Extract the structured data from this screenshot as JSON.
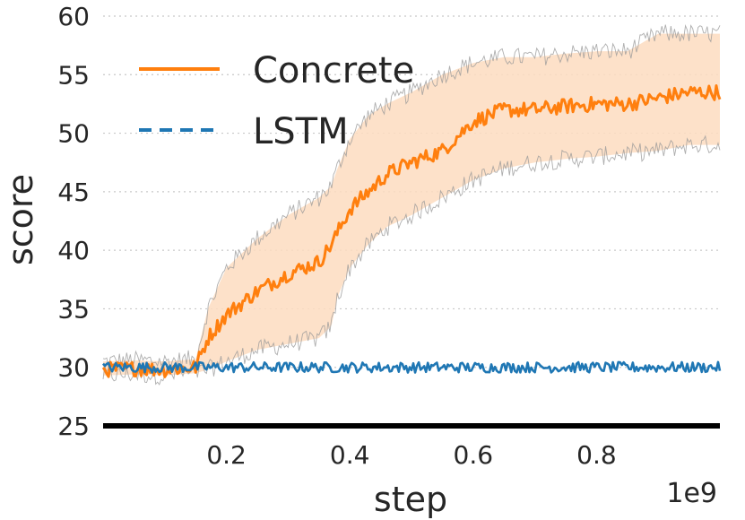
{
  "chart_data": {
    "type": "line",
    "title": "",
    "xlabel": "step",
    "ylabel": "score",
    "x_offset_label": "1e9",
    "xlim": [
      0.0,
      1.0
    ],
    "ylim": [
      25,
      60
    ],
    "xticks": [
      0.2,
      0.4,
      0.6,
      0.8
    ],
    "xtick_labels": [
      "0.2",
      "0.4",
      "0.6",
      "0.8"
    ],
    "yticks": [
      25,
      30,
      35,
      40,
      45,
      50,
      55,
      60
    ],
    "ytick_labels": [
      "25",
      "30",
      "35",
      "40",
      "45",
      "50",
      "55",
      "60"
    ],
    "grid": "horizontal dotted",
    "legend_position": "top-left",
    "series": [
      {
        "name": "Concrete",
        "color": "#ff7f0e",
        "style": "solid",
        "band_color": "#fddcc0",
        "x": [
          0.0,
          0.05,
          0.1,
          0.15,
          0.17,
          0.2,
          0.25,
          0.3,
          0.35,
          0.37,
          0.38,
          0.4,
          0.43,
          0.46,
          0.5,
          0.55,
          0.6,
          0.65,
          0.7,
          0.75,
          0.8,
          0.85,
          0.9,
          0.95,
          1.0
        ],
        "values": [
          29.8,
          29.9,
          29.8,
          30.0,
          32.5,
          34.5,
          36.5,
          38.0,
          39.0,
          40.5,
          41.5,
          43.5,
          45.0,
          46.5,
          47.5,
          48.5,
          51.0,
          52.0,
          52.0,
          52.3,
          52.5,
          52.5,
          53.0,
          53.5,
          53.5
        ],
        "lower": [
          29.3,
          29.4,
          29.3,
          29.5,
          29.8,
          30.5,
          31.5,
          32.0,
          32.5,
          33.5,
          36.0,
          38.5,
          40.5,
          42.0,
          43.0,
          44.5,
          46.0,
          47.0,
          47.5,
          47.8,
          48.0,
          48.3,
          48.5,
          49.0,
          49.0
        ],
        "upper": [
          30.5,
          30.6,
          30.5,
          30.7,
          35.0,
          38.5,
          41.0,
          43.0,
          44.5,
          45.5,
          47.0,
          49.5,
          51.5,
          52.5,
          53.5,
          55.0,
          56.0,
          56.5,
          56.5,
          56.8,
          57.0,
          57.0,
          58.5,
          58.5,
          58.5
        ]
      },
      {
        "name": "LSTM",
        "color": "#1f77b4",
        "style": "dashed",
        "x": [
          0.0,
          0.25,
          0.5,
          0.75,
          1.0
        ],
        "values": [
          30.0,
          30.0,
          30.0,
          30.0,
          30.0
        ]
      }
    ]
  }
}
